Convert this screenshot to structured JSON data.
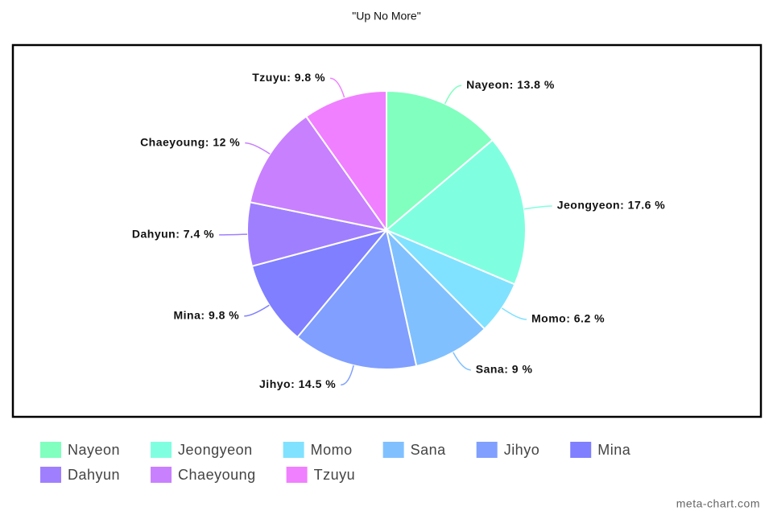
{
  "chart_data": {
    "type": "pie",
    "title": "\"Up No More\"",
    "categories": [
      "Nayeon",
      "Jeongyeon",
      "Momo",
      "Sana",
      "Jihyo",
      "Mina",
      "Dahyun",
      "Chaeyoung",
      "Tzuyu"
    ],
    "values": [
      13.8,
      17.6,
      6.2,
      9,
      14.5,
      9.8,
      7.4,
      12,
      9.8
    ],
    "value_labels": [
      "Nayeon: 13.8 %",
      "Jeongyeon: 17.6 %",
      "Momo: 6.2 %",
      "Sana: 9 %",
      "Jihyo: 14.5 %",
      "Mina: 9.8 %",
      "Dahyun: 7.4 %",
      "Chaeyoung: 12 %",
      "Tzuyu: 9.8 %"
    ],
    "colors": [
      "#80ffbf",
      "#80ffe0",
      "#80e2ff",
      "#80c0ff",
      "#809fff",
      "#7f7fff",
      "#a07fff",
      "#c880ff",
      "#f080ff"
    ],
    "source": "meta-chart.com"
  }
}
